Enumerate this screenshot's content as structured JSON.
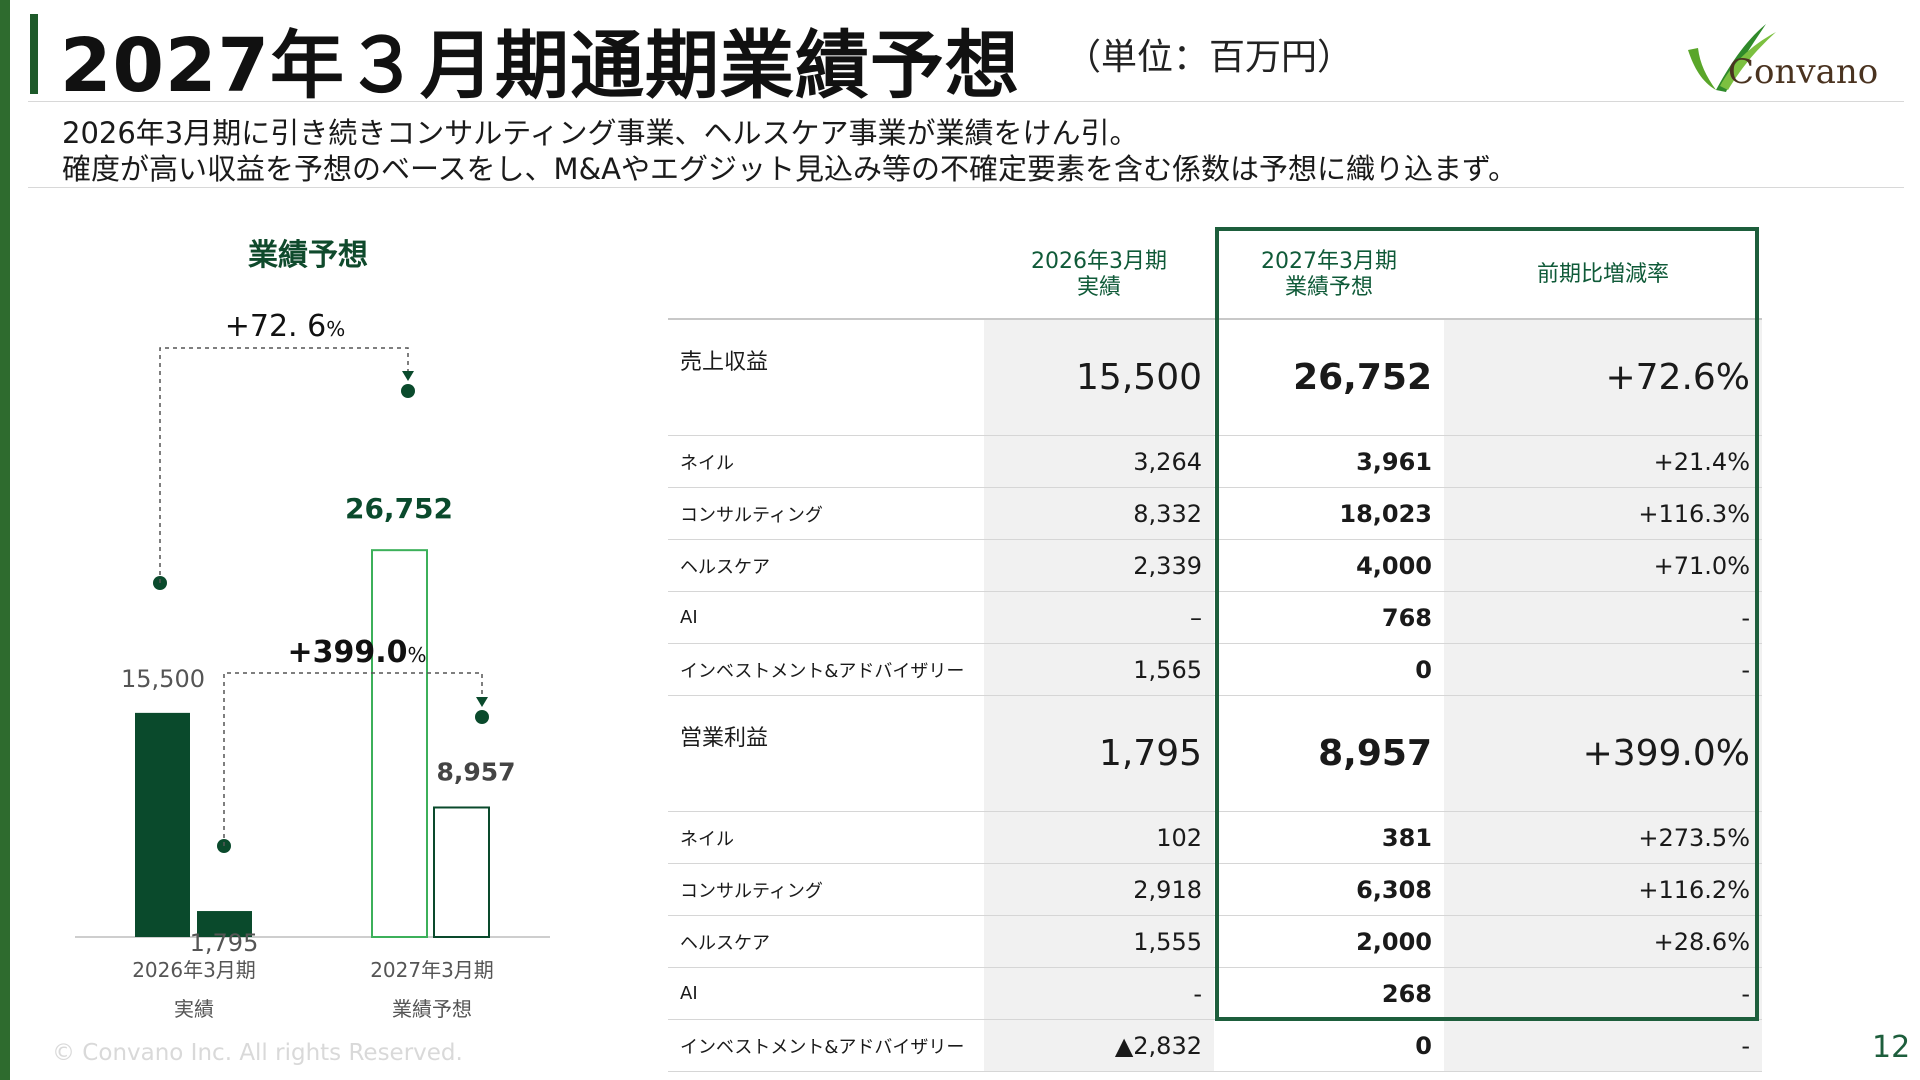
{
  "header": {
    "title": "2027年３月期通期業績予想",
    "unit": "（単位：百万円）",
    "logo_text": "Convano"
  },
  "description": {
    "line1": "2026年3月期に引き続きコンサルティング事業、ヘルスケア事業が業績をけん引。",
    "line2": "確度が高い収益を予想のベースをし、M&Aやエグジット見込み等の不確定要素を含む係数は予想に織り込まず。"
  },
  "chart_title": "業績予想",
  "chart_data": {
    "type": "bar",
    "categories": [
      "2026年3月期",
      "2027年3月期"
    ],
    "category_sublabels": [
      "実績",
      "業績予想"
    ],
    "series": [
      {
        "name": "売上収益",
        "values": [
          15500,
          26752
        ],
        "labels": [
          "15,500",
          "26,752"
        ]
      },
      {
        "name": "営業利益",
        "values": [
          1795,
          8957
        ],
        "labels": [
          "1,795",
          "8,957"
        ]
      }
    ],
    "ylim": [
      0,
      30000
    ],
    "annotations": [
      {
        "from_series": "売上収益",
        "text_main": "+72. 6",
        "text_suffix": "%"
      },
      {
        "from_series": "営業利益",
        "text_main": "+399.0",
        "text_suffix": "%"
      }
    ],
    "style": {
      "actual": "filled",
      "forecast": "outlined"
    }
  },
  "colors": {
    "dark_green": "#0a4a2c",
    "bright_green": "#3cb05a",
    "accent": "#1d5e3c"
  },
  "table": {
    "headers": [
      "",
      "2026年3月期\n実績",
      "2027年3月期\n業績予想",
      "前期比増減率"
    ],
    "rows": [
      {
        "label": "売上収益",
        "v2026": "15,500",
        "v2027": "26,752",
        "change": "+72.6%",
        "main": true
      },
      {
        "label": "ネイル",
        "v2026": "3,264",
        "v2027": "3,961",
        "change": "+21.4%"
      },
      {
        "label": "コンサルティング",
        "v2026": "8,332",
        "v2027": "18,023",
        "change": "+116.3%"
      },
      {
        "label": "ヘルスケア",
        "v2026": "2,339",
        "v2027": "4,000",
        "change": "+71.0%"
      },
      {
        "label": "AI",
        "v2026": "–",
        "v2027": "768",
        "change": "-"
      },
      {
        "label": "インベストメント&アドバイザリー",
        "v2026": "1,565",
        "v2027": "0",
        "change": "-"
      },
      {
        "label": "営業利益",
        "v2026": "1,795",
        "v2027": "8,957",
        "change": "+399.0%",
        "main": true
      },
      {
        "label": "ネイル",
        "v2026": "102",
        "v2027": "381",
        "change": "+273.5%"
      },
      {
        "label": "コンサルティング",
        "v2026": "2,918",
        "v2027": "6,308",
        "change": "+116.2%"
      },
      {
        "label": "ヘルスケア",
        "v2026": "1,555",
        "v2027": "2,000",
        "change": "+28.6%"
      },
      {
        "label": "AI",
        "v2026": "-",
        "v2027": "268",
        "change": "-"
      },
      {
        "label": "インベストメント&アドバイザリー",
        "v2026": "▲2,832",
        "v2027": "0",
        "change": "-"
      }
    ]
  },
  "footer": {
    "copyright": "© Convano Inc. All rights Reserved.",
    "page_number": "12"
  }
}
